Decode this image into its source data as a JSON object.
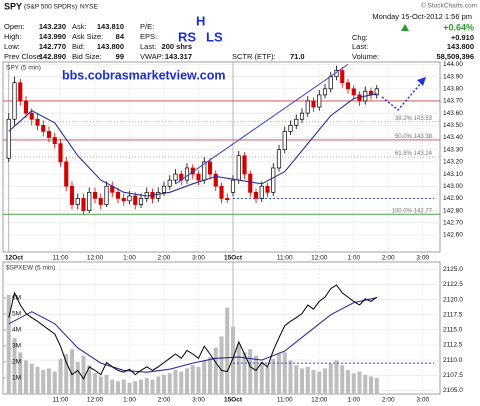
{
  "header": {
    "symbol": "SPY",
    "name": "(S&P 500 SPDRs)",
    "exchange": "NYSE",
    "source": "© StockCharts.com",
    "datetime": "Monday 15-Oct-2012 1:56 pm",
    "quote": [
      [
        [
          "Open:",
          "143.230"
        ],
        [
          "High:",
          "143.990"
        ],
        [
          "Low:",
          "142.770"
        ],
        [
          "Prev Close:",
          "142.890"
        ]
      ],
      [
        [
          "Ask:",
          "143.810"
        ],
        [
          "Ask Size:",
          "84"
        ],
        [
          "Bid:",
          "143.800"
        ],
        [
          "Bid Size:",
          "99"
        ]
      ],
      [
        [
          "P/E:"
        ],
        [
          "EPS:"
        ],
        [
          "Last:",
          "200 shrs"
        ],
        [
          "VWAP:",
          "143.317"
        ]
      ]
    ],
    "sctr_label": "SCTR (ETF):",
    "sctr": "71.0",
    "chg_label": "Chg:",
    "chg_pct": "+0.64%",
    "chg": "+0.910",
    "last_label": "Last:",
    "last": "143.800",
    "volume_label": "Volume:",
    "volume": "58,509,396"
  },
  "chart_data": [
    {
      "type": "candlestick",
      "title": "SPY (5 min)",
      "annotations": [
        "bbs.cobrasmarketview.com",
        "H",
        "RS",
        "LS"
      ],
      "xlim": [
        -1,
        75
      ],
      "xticks": [
        {
          "value": 0,
          "label": "12Oct"
        },
        {
          "value": 9,
          "label": "11:00"
        },
        {
          "value": 15,
          "label": "12:00"
        },
        {
          "value": 21,
          "label": "1:00"
        },
        {
          "value": 27,
          "label": "2:00"
        },
        {
          "value": 33,
          "label": "3:00"
        },
        {
          "value": 39,
          "label": "15Oct"
        },
        {
          "value": 48,
          "label": "11:00"
        },
        {
          "value": 54,
          "label": "12:00"
        },
        {
          "value": 60,
          "label": "1:00"
        },
        {
          "value": 66,
          "label": "2:00"
        },
        {
          "value": 72,
          "label": "3:00"
        }
      ],
      "ylim": [
        142.46,
        144.02
      ],
      "yticks": [
        {
          "value": 142.6,
          "label": "142.60"
        },
        {
          "value": 142.7,
          "label": "142.70"
        },
        {
          "value": 142.8,
          "label": "142.80"
        },
        {
          "value": 142.9,
          "label": "142.90"
        },
        {
          "value": 143.0,
          "label": "143.00"
        },
        {
          "value": 143.1,
          "label": "143.10"
        },
        {
          "value": 143.2,
          "label": "143.20"
        },
        {
          "value": 143.3,
          "label": "143.30"
        },
        {
          "value": 143.4,
          "label": "143.40"
        },
        {
          "value": 143.5,
          "label": "143.50"
        },
        {
          "value": 143.6,
          "label": "143.60"
        },
        {
          "value": 143.7,
          "label": "143.70"
        },
        {
          "value": 143.8,
          "label": "143.80"
        },
        {
          "value": 143.9,
          "label": "143.90"
        },
        {
          "value": 144.0,
          "label": "144.00"
        }
      ],
      "colors": {
        "up": "#000000",
        "down": "#d40000"
      },
      "ohlc": [
        [
          143.23,
          143.6,
          143.2,
          143.55
        ],
        [
          143.55,
          143.9,
          143.5,
          143.85
        ],
        [
          143.85,
          143.88,
          143.66,
          143.7
        ],
        [
          143.7,
          143.74,
          143.56,
          143.6
        ],
        [
          143.6,
          143.64,
          143.5,
          143.55
        ],
        [
          143.55,
          143.59,
          143.46,
          143.5
        ],
        [
          143.5,
          143.54,
          143.41,
          143.45
        ],
        [
          143.45,
          143.49,
          143.36,
          143.4
        ],
        [
          143.4,
          143.44,
          143.31,
          143.35
        ],
        [
          143.35,
          143.39,
          143.16,
          143.2
        ],
        [
          143.2,
          143.24,
          142.96,
          143.0
        ],
        [
          143.0,
          143.04,
          142.81,
          142.85
        ],
        [
          142.85,
          142.94,
          142.81,
          142.9
        ],
        [
          142.9,
          142.94,
          142.77,
          142.8
        ],
        [
          142.8,
          142.99,
          142.78,
          142.95
        ],
        [
          142.95,
          142.99,
          142.86,
          142.9
        ],
        [
          142.9,
          142.94,
          142.81,
          142.85
        ],
        [
          142.85,
          143.04,
          142.83,
          143.0
        ],
        [
          143.0,
          143.04,
          142.91,
          142.95
        ],
        [
          142.95,
          142.99,
          142.86,
          142.9
        ],
        [
          142.9,
          142.94,
          142.84,
          142.88
        ],
        [
          142.88,
          142.96,
          142.85,
          142.92
        ],
        [
          142.92,
          142.95,
          142.81,
          142.85
        ],
        [
          142.85,
          142.94,
          142.82,
          142.9
        ],
        [
          142.9,
          142.99,
          142.87,
          142.95
        ],
        [
          142.95,
          142.98,
          142.86,
          142.9
        ],
        [
          142.9,
          142.99,
          142.87,
          142.95
        ],
        [
          142.95,
          143.04,
          142.92,
          143.0
        ],
        [
          143.0,
          143.09,
          142.97,
          143.05
        ],
        [
          143.05,
          143.14,
          143.02,
          143.1
        ],
        [
          143.1,
          143.13,
          143.01,
          143.05
        ],
        [
          143.05,
          143.19,
          143.02,
          143.15
        ],
        [
          143.15,
          143.18,
          143.06,
          143.1
        ],
        [
          143.1,
          143.13,
          143.01,
          143.05
        ],
        [
          143.05,
          143.24,
          143.02,
          143.2
        ],
        [
          143.2,
          143.23,
          143.06,
          143.1
        ],
        [
          143.1,
          143.13,
          142.96,
          143.0
        ],
        [
          143.0,
          143.03,
          142.86,
          142.9
        ],
        [
          142.9,
          142.94,
          142.86,
          142.89
        ],
        [
          142.95,
          143.09,
          142.92,
          143.05
        ],
        [
          143.05,
          143.29,
          143.02,
          143.25
        ],
        [
          143.25,
          143.28,
          143.06,
          143.1
        ],
        [
          143.1,
          143.13,
          142.91,
          142.95
        ],
        [
          142.95,
          142.98,
          142.86,
          142.9
        ],
        [
          142.9,
          143.04,
          142.87,
          143.0
        ],
        [
          143.0,
          143.03,
          142.91,
          142.95
        ],
        [
          142.95,
          143.19,
          142.92,
          143.15
        ],
        [
          143.15,
          143.34,
          143.12,
          143.3
        ],
        [
          143.3,
          143.49,
          143.27,
          143.45
        ],
        [
          143.45,
          143.54,
          143.42,
          143.5
        ],
        [
          143.5,
          143.59,
          143.47,
          143.55
        ],
        [
          143.55,
          143.64,
          143.52,
          143.6
        ],
        [
          143.6,
          143.74,
          143.57,
          143.7
        ],
        [
          143.7,
          143.73,
          143.61,
          143.65
        ],
        [
          143.65,
          143.79,
          143.62,
          143.75
        ],
        [
          143.75,
          143.84,
          143.72,
          143.8
        ],
        [
          143.8,
          143.94,
          143.77,
          143.9
        ],
        [
          143.9,
          143.99,
          143.87,
          143.95
        ],
        [
          143.95,
          143.98,
          143.81,
          143.85
        ],
        [
          143.85,
          143.88,
          143.76,
          143.8
        ],
        [
          143.8,
          143.83,
          143.71,
          143.75
        ],
        [
          143.75,
          143.78,
          143.66,
          143.7
        ],
        [
          143.7,
          143.82,
          143.67,
          143.78
        ],
        [
          143.78,
          143.81,
          143.71,
          143.75
        ],
        [
          143.75,
          143.83,
          143.72,
          143.8
        ]
      ],
      "ma": {
        "color": "#2a2f9a",
        "x": [
          0,
          4,
          8,
          12,
          16,
          20,
          24,
          28,
          32,
          36,
          40,
          44,
          48,
          52,
          56,
          60,
          64
        ],
        "values": [
          143.45,
          143.62,
          143.52,
          143.25,
          143.05,
          142.95,
          142.92,
          142.95,
          143.02,
          143.08,
          143.05,
          143.02,
          143.12,
          143.35,
          143.58,
          143.72,
          143.76
        ]
      },
      "trendline": {
        "color": "#3344cc",
        "x": [
          29,
          59
        ],
        "values": [
          143.02,
          144.0
        ]
      },
      "hlines": [
        {
          "value": 143.7,
          "color": "#d04040"
        }
      ],
      "levels": [
        {
          "label": "38.2% 143.53",
          "value": 143.53,
          "color": "#aaaaaa"
        },
        {
          "label": "50.0% 143.38",
          "value": 143.38,
          "color": "#d04040"
        },
        {
          "label": "61.8% 143.24",
          "value": 143.24,
          "color": "#aaaaaa"
        },
        {
          "label": "100.0% 142.77",
          "value": 142.77,
          "color": "#44aa44"
        }
      ],
      "level": {
        "x": [
          39,
          74
        ],
        "value": 142.9,
        "color": "#3344cc"
      }
    },
    {
      "type": "line",
      "title": "$SPXEW (5 min)",
      "color": "#000000",
      "xlim": [
        -1,
        75
      ],
      "xticks": [
        {
          "value": 9,
          "label": "11:00"
        },
        {
          "value": 15,
          "label": "12:00"
        },
        {
          "value": 21,
          "label": "1:00"
        },
        {
          "value": 27,
          "label": "2:00"
        },
        {
          "value": 33,
          "label": "3:00"
        },
        {
          "value": 39,
          "label": "15Oct"
        },
        {
          "value": 48,
          "label": "11:00"
        },
        {
          "value": 54,
          "label": "12:00"
        },
        {
          "value": 60,
          "label": "1:00"
        },
        {
          "value": 66,
          "label": "2:00"
        },
        {
          "value": 72,
          "label": "3:00"
        }
      ],
      "ylim": [
        2104.4,
        2126.2
      ],
      "yticks": [
        {
          "value": 2105,
          "label": "2105.0"
        },
        {
          "value": 2107.5,
          "label": "2107.5"
        },
        {
          "value": 2110,
          "label": "2110.0"
        },
        {
          "value": 2112.5,
          "label": "2112.5"
        },
        {
          "value": 2115,
          "label": "2115.0"
        },
        {
          "value": 2117.5,
          "label": "2117.5"
        },
        {
          "value": 2120,
          "label": "2120.0"
        },
        {
          "value": 2122.5,
          "label": "2122.5"
        },
        {
          "value": 2125,
          "label": "2125.0"
        }
      ],
      "values": [
        2117.0,
        2121.1,
        2119.1,
        2117.7,
        2117.0,
        2116.4,
        2115.7,
        2115.0,
        2114.3,
        2112.3,
        2109.6,
        2107.6,
        2108.3,
        2106.9,
        2108.9,
        2108.3,
        2107.6,
        2109.6,
        2108.9,
        2108.3,
        2108.0,
        2108.5,
        2107.6,
        2108.3,
        2108.9,
        2108.3,
        2108.9,
        2109.6,
        2110.3,
        2111.0,
        2110.3,
        2111.6,
        2111.0,
        2110.3,
        2112.3,
        2111.0,
        2109.6,
        2108.3,
        2108.1,
        2110.3,
        2113.0,
        2111.0,
        2108.9,
        2108.3,
        2109.6,
        2108.9,
        2111.6,
        2113.7,
        2115.7,
        2116.4,
        2117.0,
        2117.7,
        2119.1,
        2118.4,
        2119.7,
        2120.4,
        2121.8,
        2122.4,
        2121.1,
        2120.4,
        2119.7,
        2119.1,
        2120.1,
        2119.7,
        2120.4
      ],
      "ma": {
        "color": "#2a2f9a",
        "x": [
          0,
          4,
          8,
          12,
          16,
          20,
          24,
          28,
          32,
          36,
          40,
          44,
          48,
          52,
          56,
          60,
          64
        ],
        "values": [
          2116,
          2118,
          2116,
          2112,
          2109.5,
          2108.3,
          2108,
          2108.5,
          2109.5,
          2110.3,
          2110.5,
          2110,
          2111.5,
          2114.5,
          2117.5,
          2119.5,
          2120.3
        ]
      },
      "level": {
        "x": [
          39,
          74
        ],
        "value": 2109.5,
        "color": "#3344cc"
      },
      "volume": {
        "color": "#bdbdbd",
        "ylim": [
          0,
          8250000
        ],
        "yticks": [
          {
            "value": 1000000,
            "label": "1M"
          },
          {
            "value": 2000000,
            "label": "2M"
          },
          {
            "value": 3000000,
            "label": "3M"
          },
          {
            "value": 4000000,
            "label": "4M"
          },
          {
            "value": 5000000,
            "label": "5M"
          },
          {
            "value": 6000000,
            "label": "6M"
          }
        ],
        "values": [
          6200000,
          3500000,
          2600000,
          2100000,
          1900000,
          1700000,
          1500000,
          1600000,
          1400000,
          2200000,
          2500000,
          2800000,
          2000000,
          2400000,
          1800000,
          1300000,
          1100000,
          1200000,
          900000,
          800000,
          900000,
          700000,
          800000,
          900000,
          1000000,
          900000,
          1100000,
          1200000,
          1300000,
          1500000,
          1400000,
          1600000,
          1800000,
          1700000,
          2100000,
          2300000,
          2900000,
          3600000,
          5400000,
          4200000,
          3100000,
          2600000,
          2800000,
          2400000,
          2000000,
          1700000,
          2200000,
          2500000,
          2600000,
          2100000,
          1800000,
          1600000,
          1700000,
          1500000,
          1400000,
          1600000,
          1900000,
          2100000,
          1800000,
          1500000,
          1300000,
          1400000,
          1200000,
          1100000,
          1000000
        ]
      }
    }
  ]
}
